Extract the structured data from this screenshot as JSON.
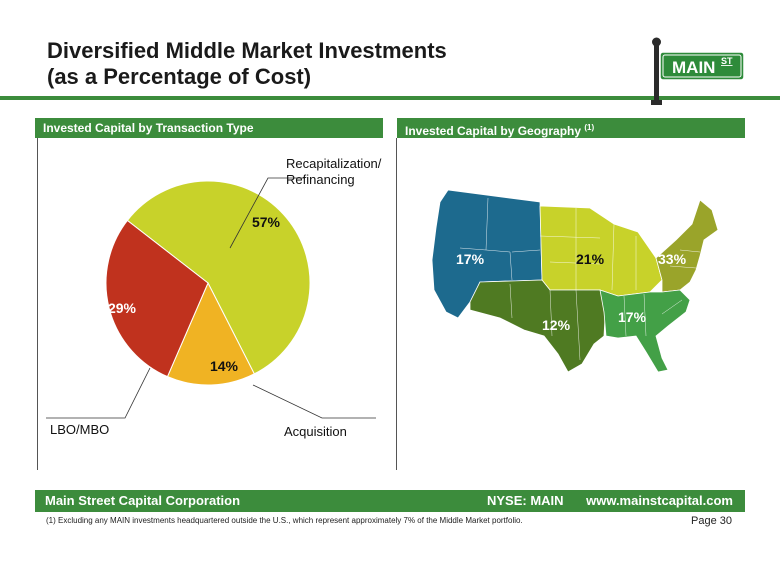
{
  "title": {
    "line1": "Diversified Middle Market Investments",
    "line2": "(as a Percentage of Cost)"
  },
  "logo": {
    "text": "MAIN",
    "superscript": "ST",
    "color": "#2e8b3a"
  },
  "left_panel": {
    "header": "Invested Capital by Transaction Type"
  },
  "right_panel": {
    "header": "Invested Capital by Geography",
    "header_note": "(1)"
  },
  "chart_data": [
    {
      "type": "pie",
      "title": "Invested Capital by Transaction Type",
      "categories": [
        "Recapitalization/ Refinancing",
        "Acquisition",
        "LBO/MBO"
      ],
      "values": [
        57,
        14,
        29
      ],
      "labels": [
        "57%",
        "14%",
        "29%"
      ],
      "colors": [
        "#c8d22a",
        "#f0b323",
        "#c0321e"
      ]
    }
  ],
  "pie_callouts": {
    "recap_line1": "Recapitalization/",
    "recap_line2": "Refinancing",
    "acquisition": "Acquisition",
    "lbo": "LBO/MBO"
  },
  "geography": {
    "regions": [
      {
        "name": "West",
        "label": "17%",
        "color": "#1d6a8e"
      },
      {
        "name": "Midwest",
        "label": "21%",
        "color": "#c8d22a"
      },
      {
        "name": "Northeast",
        "label": "33%",
        "color": "#9aa42a"
      },
      {
        "name": "Southwest",
        "label": "12%",
        "color": "#4f7a22"
      },
      {
        "name": "Southeast",
        "label": "17%",
        "color": "#43a047"
      }
    ]
  },
  "footer": {
    "company": "Main Street Capital Corporation",
    "ticker": "NYSE: MAIN",
    "website": "www.mainstcapital.com"
  },
  "footnote": "(1) Excluding any MAIN investments headquartered outside the U.S., which represent approximately 7% of the Middle Market portfolio.",
  "page": "Page 30"
}
